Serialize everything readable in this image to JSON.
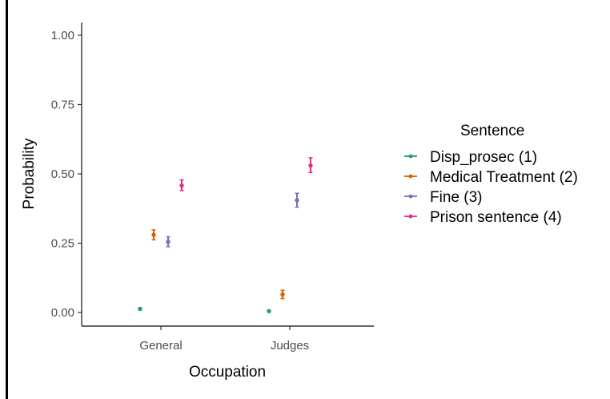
{
  "chart_data": {
    "type": "scatter",
    "categories": [
      "General",
      "Judges"
    ],
    "xlabel": "Occupation",
    "ylabel": "Probability",
    "ylim": [
      0,
      1
    ],
    "y_ticks": [
      "0.00",
      "0.25",
      "0.50",
      "0.75",
      "1.00"
    ],
    "y_tick_values": [
      0,
      0.25,
      0.5,
      0.75,
      1.0
    ],
    "grid": false,
    "legend": {
      "title": "Sentence",
      "placement": "right"
    },
    "series": [
      {
        "name": "Disp_prosec (1)",
        "color": "#1b9e77",
        "values": [
          0.013,
          0.005
        ],
        "lower": [
          0.01,
          0.003
        ],
        "upper": [
          0.016,
          0.007
        ]
      },
      {
        "name": "Medical Treatment (2)",
        "color": "#d95f02",
        "values": [
          0.28,
          0.065
        ],
        "lower": [
          0.262,
          0.05
        ],
        "upper": [
          0.298,
          0.08
        ]
      },
      {
        "name": "Fine (3)",
        "color": "#7570b3",
        "values": [
          0.255,
          0.405
        ],
        "lower": [
          0.237,
          0.38
        ],
        "upper": [
          0.273,
          0.43
        ]
      },
      {
        "name": "Prison sentence (4)",
        "color": "#e7298a",
        "values": [
          0.458,
          0.53
        ],
        "lower": [
          0.44,
          0.505
        ],
        "upper": [
          0.478,
          0.558
        ]
      }
    ]
  }
}
